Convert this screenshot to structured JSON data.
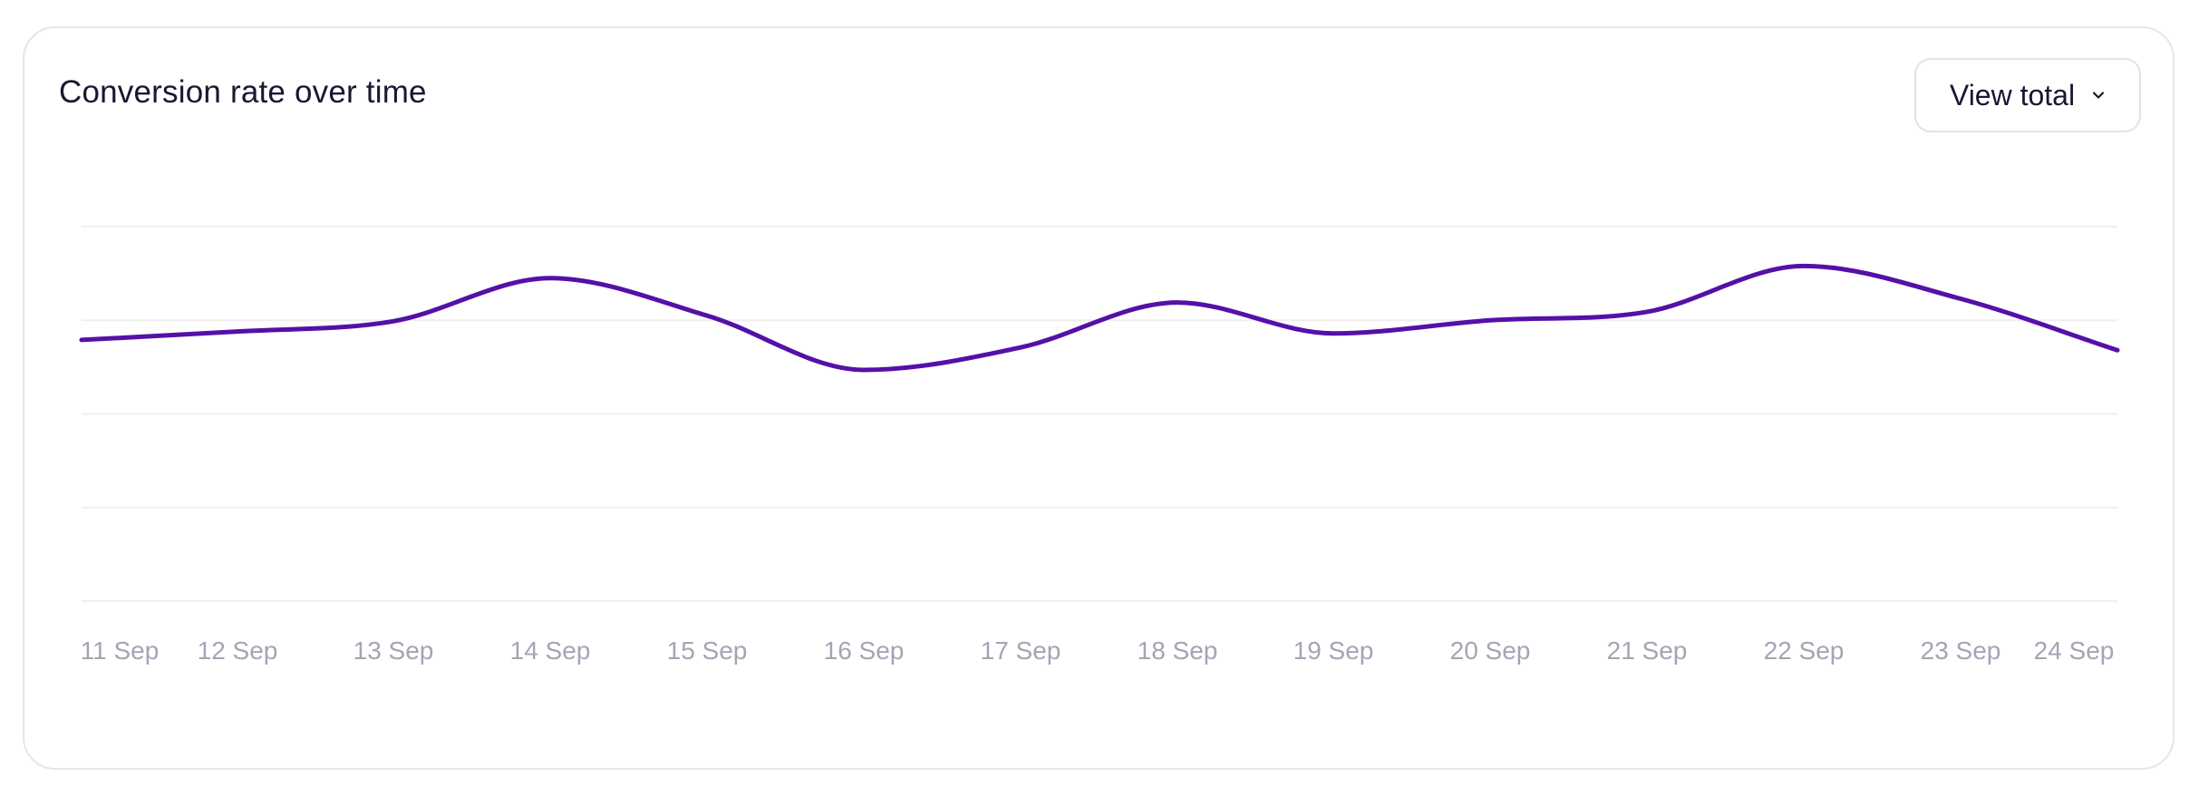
{
  "header": {
    "title": "Conversion rate over time"
  },
  "controls": {
    "view_label": "View total"
  },
  "colors": {
    "line": "#5510a8",
    "grid": "#efefef",
    "tick": "#a6a4b4",
    "title": "#1a1633"
  },
  "chart_data": {
    "type": "line",
    "title": "Conversion rate over time",
    "xlabel": "",
    "ylabel": "",
    "ylim": [
      0,
      4
    ],
    "grid": true,
    "categories": [
      "11 Sep",
      "12 Sep",
      "13 Sep",
      "14 Sep",
      "15 Sep",
      "16 Sep",
      "17 Sep",
      "18 Sep",
      "19 Sep",
      "20 Sep",
      "21 Sep",
      "22 Sep",
      "23 Sep",
      "24 Sep"
    ],
    "series": [
      {
        "values": [
          2.79,
          2.88,
          2.99,
          3.45,
          3.05,
          2.47,
          2.71,
          3.19,
          2.86,
          3.0,
          3.09,
          3.58,
          3.23,
          2.68
        ]
      }
    ]
  }
}
